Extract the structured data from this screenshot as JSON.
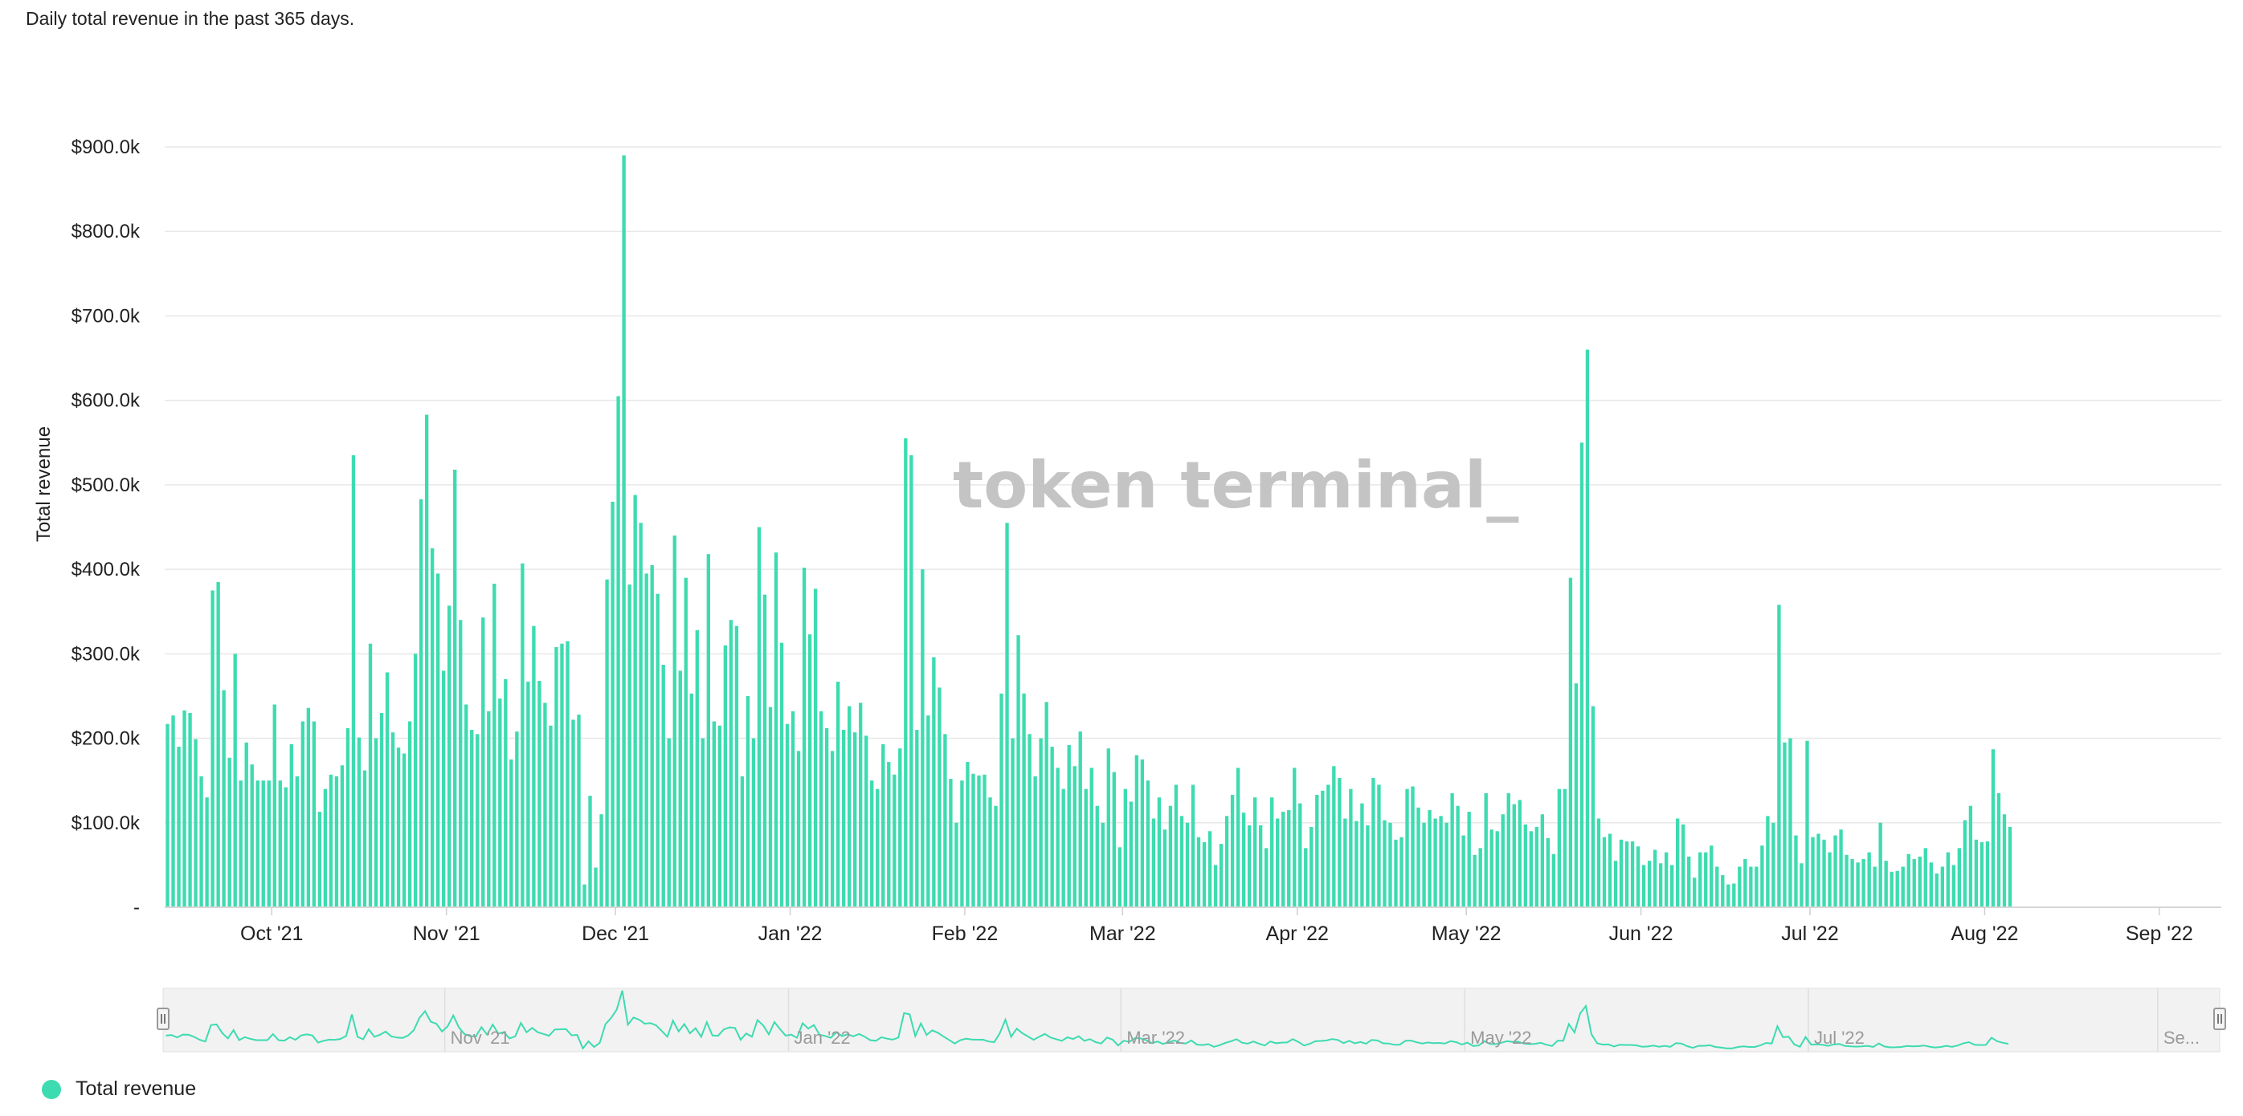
{
  "subtitle": "Daily total revenue in the past 365 days.",
  "watermark": "token terminal_",
  "colors": {
    "bar": "#3ddbb0",
    "navigator_line": "#3ddbb0",
    "grid": "#e8e8e8",
    "navigator_bg": "#f2f2f2"
  },
  "navigator": {
    "handle_left_icon": "grip-icon",
    "handle_right_icon": "grip-icon",
    "labels": [
      "Nov '21",
      "Jan '22",
      "Mar '22",
      "May '22",
      "Jul '22",
      "Se..."
    ]
  },
  "legend": {
    "label": "Total revenue"
  },
  "chart_data": {
    "type": "bar",
    "ylabel": "Total revenue",
    "ylim": [
      0,
      900000
    ],
    "yticks": [
      {
        "value": 0,
        "label": "-"
      },
      {
        "value": 100000,
        "label": "$100.0k"
      },
      {
        "value": 200000,
        "label": "$200.0k"
      },
      {
        "value": 300000,
        "label": "$300.0k"
      },
      {
        "value": 400000,
        "label": "$400.0k"
      },
      {
        "value": 500000,
        "label": "$500.0k"
      },
      {
        "value": 600000,
        "label": "$600.0k"
      },
      {
        "value": 700000,
        "label": "$700.0k"
      },
      {
        "value": 800000,
        "label": "$800.0k"
      },
      {
        "value": 900000,
        "label": "$900.0k"
      }
    ],
    "xlim": [
      "2021-09-12",
      "2022-09-12"
    ],
    "xticks": [
      {
        "date": "2021-10-01",
        "label": "Oct '21"
      },
      {
        "date": "2021-11-01",
        "label": "Nov '21"
      },
      {
        "date": "2021-12-01",
        "label": "Dec '21"
      },
      {
        "date": "2022-01-01",
        "label": "Jan '22"
      },
      {
        "date": "2022-02-01",
        "label": "Feb '22"
      },
      {
        "date": "2022-03-01",
        "label": "Mar '22"
      },
      {
        "date": "2022-04-01",
        "label": "Apr '22"
      },
      {
        "date": "2022-05-01",
        "label": "May '22"
      },
      {
        "date": "2022-06-01",
        "label": "Jun '22"
      },
      {
        "date": "2022-07-01",
        "label": "Jul '22"
      },
      {
        "date": "2022-08-01",
        "label": "Aug '22"
      },
      {
        "date": "2022-09-01",
        "label": "Sep '22"
      }
    ],
    "series": [
      {
        "name": "Total revenue",
        "start_date": "2021-09-12",
        "interval": "1 day",
        "values": [
          217000,
          227000,
          190000,
          233000,
          230000,
          199000,
          155000,
          130000,
          375000,
          385000,
          257000,
          177000,
          300000,
          150000,
          195000,
          169000,
          150000,
          150000,
          150000,
          240000,
          150000,
          142000,
          193000,
          155000,
          220000,
          236000,
          220000,
          113000,
          140000,
          157000,
          155000,
          168000,
          212000,
          535000,
          201000,
          162000,
          312000,
          200000,
          230000,
          278000,
          207000,
          189000,
          182000,
          220000,
          300000,
          483000,
          583000,
          425000,
          395000,
          280000,
          357000,
          518000,
          340000,
          240000,
          210000,
          205000,
          343000,
          232000,
          383000,
          247000,
          270000,
          175000,
          208000,
          407000,
          267000,
          333000,
          268000,
          242000,
          215000,
          308000,
          312000,
          315000,
          222000,
          228000,
          27000,
          132000,
          47000,
          110000,
          388000,
          480000,
          605000,
          890000,
          382000,
          488000,
          455000,
          395000,
          405000,
          371000,
          287000,
          200000,
          440000,
          280000,
          390000,
          253000,
          328000,
          200000,
          418000,
          220000,
          215000,
          310000,
          340000,
          333000,
          155000,
          250000,
          200000,
          450000,
          370000,
          237000,
          420000,
          313000,
          217000,
          232000,
          185000,
          402000,
          323000,
          377000,
          232000,
          212000,
          185000,
          267000,
          210000,
          238000,
          207000,
          242000,
          203000,
          150000,
          140000,
          193000,
          172000,
          157000,
          188000,
          555000,
          535000,
          210000,
          400000,
          227000,
          296000,
          260000,
          205000,
          152000,
          100000,
          150000,
          172000,
          158000,
          156000,
          157000,
          130000,
          120000,
          253000,
          455000,
          200000,
          322000,
          253000,
          205000,
          155000,
          200000,
          243000,
          190000,
          165000,
          140000,
          192000,
          167000,
          208000,
          140000,
          165000,
          120000,
          100000,
          188000,
          160000,
          71000,
          140000,
          125000,
          180000,
          175000,
          150000,
          105000,
          130000,
          92000,
          120000,
          145000,
          108000,
          100000,
          145000,
          83000,
          77000,
          90000,
          50000,
          75000,
          108000,
          133000,
          165000,
          112000,
          97000,
          130000,
          97000,
          70000,
          130000,
          105000,
          113000,
          115000,
          165000,
          123000,
          70000,
          95000,
          133000,
          138000,
          145000,
          167000,
          153000,
          105000,
          140000,
          102000,
          123000,
          97000,
          153000,
          145000,
          103000,
          100000,
          80000,
          83000,
          140000,
          143000,
          118000,
          100000,
          115000,
          105000,
          108000,
          100000,
          135000,
          120000,
          85000,
          113000,
          62000,
          70000,
          135000,
          92000,
          90000,
          110000,
          135000,
          122000,
          127000,
          98000,
          90000,
          95000,
          110000,
          82000,
          63000,
          140000,
          140000,
          390000,
          265000,
          550000,
          660000,
          238000,
          105000,
          83000,
          87000,
          55000,
          80000,
          78000,
          78000,
          72000,
          50000,
          55000,
          68000,
          52000,
          65000,
          50000,
          105000,
          98000,
          60000,
          35000,
          65000,
          65000,
          73000,
          48000,
          38000,
          27000,
          28000,
          48000,
          57000,
          48000,
          48000,
          73000,
          108000,
          100000,
          358000,
          195000,
          200000,
          85000,
          52000,
          197000,
          83000,
          87000,
          80000,
          65000,
          85000,
          92000,
          62000,
          57000,
          53000,
          57000,
          65000,
          48000,
          100000,
          55000,
          42000,
          43000,
          48000,
          63000,
          57000,
          60000,
          70000,
          53000,
          40000,
          48000,
          65000,
          50000,
          70000,
          103000,
          120000,
          80000,
          77000,
          78000,
          187000,
          135000,
          110000,
          95000
        ]
      }
    ]
  }
}
